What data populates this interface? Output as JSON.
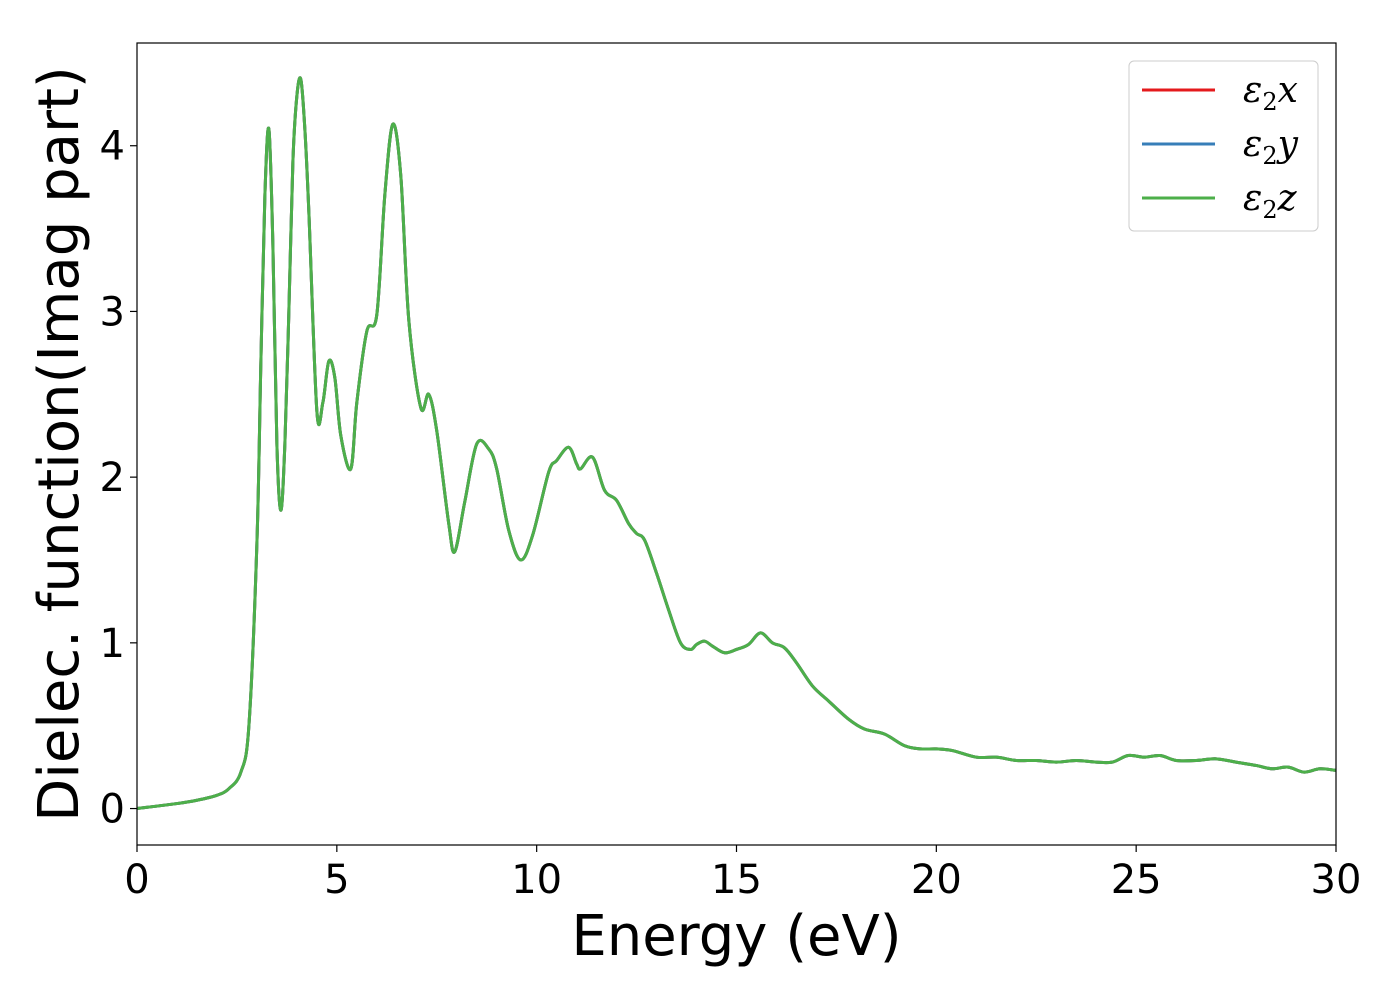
{
  "chart_data": {
    "type": "line",
    "xlabel": "Energy (eV)",
    "ylabel": "Dielec. function(Imag part)",
    "xlim": [
      0,
      30
    ],
    "ylim": [
      -0.22,
      4.62
    ],
    "xticks": [
      0,
      5,
      10,
      15,
      20,
      25,
      30
    ],
    "yticks": [
      0,
      1,
      2,
      3,
      4
    ],
    "grid": false,
    "legend_position": "top-right",
    "x": [
      0,
      1,
      1.5,
      2,
      2.3,
      2.6,
      2.8,
      3.0,
      3.1,
      3.2,
      3.3,
      3.4,
      3.5,
      3.6,
      3.7,
      3.8,
      3.9,
      4.0,
      4.1,
      4.2,
      4.3,
      4.5,
      4.65,
      4.8,
      4.95,
      5.1,
      5.35,
      5.5,
      5.75,
      6.0,
      6.2,
      6.4,
      6.6,
      6.8,
      7.1,
      7.3,
      7.5,
      7.8,
      7.95,
      8.2,
      8.5,
      8.8,
      9.0,
      9.3,
      9.6,
      9.9,
      10.3,
      10.5,
      10.8,
      11.0,
      11.1,
      11.4,
      11.7,
      12.0,
      12.3,
      12.5,
      12.7,
      13.0,
      13.3,
      13.6,
      13.85,
      14.0,
      14.2,
      14.4,
      14.7,
      15.0,
      15.3,
      15.6,
      15.9,
      16.2,
      16.5,
      16.9,
      17.3,
      17.8,
      18.2,
      18.7,
      19.2,
      19.6,
      20.0,
      20.4,
      21.0,
      21.5,
      22.0,
      22.5,
      23.0,
      23.5,
      24.0,
      24.4,
      24.8,
      25.2,
      25.6,
      26.0,
      26.5,
      27.0,
      27.5,
      28.0,
      28.4,
      28.8,
      29.2,
      29.6,
      30.0
    ],
    "series": [
      {
        "name": "ε2x",
        "color": "#e41a1c",
        "values": [
          0.0,
          0.03,
          0.05,
          0.08,
          0.12,
          0.22,
          0.5,
          1.6,
          2.7,
          3.7,
          4.1,
          3.4,
          2.2,
          1.8,
          2.2,
          3.0,
          3.9,
          4.3,
          4.4,
          4.1,
          3.6,
          2.4,
          2.45,
          2.7,
          2.6,
          2.25,
          2.05,
          2.45,
          2.88,
          2.98,
          3.7,
          4.13,
          3.82,
          2.95,
          2.42,
          2.5,
          2.28,
          1.72,
          1.55,
          1.85,
          2.2,
          2.17,
          2.05,
          1.68,
          1.5,
          1.65,
          2.03,
          2.1,
          2.18,
          2.08,
          2.05,
          2.12,
          1.92,
          1.86,
          1.72,
          1.66,
          1.62,
          1.42,
          1.2,
          1.0,
          0.96,
          0.99,
          1.01,
          0.98,
          0.94,
          0.96,
          0.99,
          1.06,
          1.0,
          0.97,
          0.88,
          0.74,
          0.65,
          0.54,
          0.48,
          0.45,
          0.38,
          0.36,
          0.36,
          0.35,
          0.31,
          0.31,
          0.29,
          0.29,
          0.28,
          0.29,
          0.28,
          0.28,
          0.32,
          0.31,
          0.32,
          0.29,
          0.29,
          0.3,
          0.28,
          0.26,
          0.24,
          0.25,
          0.22,
          0.24,
          0.23
        ]
      },
      {
        "name": "ε2y",
        "color": "#377eb8",
        "values": [
          0.0,
          0.03,
          0.05,
          0.08,
          0.12,
          0.22,
          0.5,
          1.6,
          2.7,
          3.7,
          4.1,
          3.4,
          2.2,
          1.8,
          2.2,
          3.0,
          3.9,
          4.3,
          4.4,
          4.1,
          3.6,
          2.4,
          2.45,
          2.7,
          2.6,
          2.25,
          2.05,
          2.45,
          2.88,
          2.98,
          3.7,
          4.13,
          3.82,
          2.95,
          2.42,
          2.5,
          2.28,
          1.72,
          1.55,
          1.85,
          2.2,
          2.17,
          2.05,
          1.68,
          1.5,
          1.65,
          2.03,
          2.1,
          2.18,
          2.08,
          2.05,
          2.12,
          1.92,
          1.86,
          1.72,
          1.66,
          1.62,
          1.42,
          1.2,
          1.0,
          0.96,
          0.99,
          1.01,
          0.98,
          0.94,
          0.96,
          0.99,
          1.06,
          1.0,
          0.97,
          0.88,
          0.74,
          0.65,
          0.54,
          0.48,
          0.45,
          0.38,
          0.36,
          0.36,
          0.35,
          0.31,
          0.31,
          0.29,
          0.29,
          0.28,
          0.29,
          0.28,
          0.28,
          0.32,
          0.31,
          0.32,
          0.29,
          0.29,
          0.3,
          0.28,
          0.26,
          0.24,
          0.25,
          0.22,
          0.24,
          0.23
        ]
      },
      {
        "name": "ε2z",
        "color": "#4daf4a",
        "values": [
          0.0,
          0.03,
          0.05,
          0.08,
          0.12,
          0.22,
          0.5,
          1.6,
          2.7,
          3.7,
          4.1,
          3.4,
          2.2,
          1.8,
          2.2,
          3.0,
          3.9,
          4.3,
          4.4,
          4.1,
          3.6,
          2.4,
          2.45,
          2.7,
          2.6,
          2.25,
          2.05,
          2.45,
          2.88,
          2.98,
          3.7,
          4.13,
          3.82,
          2.95,
          2.42,
          2.5,
          2.28,
          1.72,
          1.55,
          1.85,
          2.2,
          2.17,
          2.05,
          1.68,
          1.5,
          1.65,
          2.03,
          2.1,
          2.18,
          2.08,
          2.05,
          2.12,
          1.92,
          1.86,
          1.72,
          1.66,
          1.62,
          1.42,
          1.2,
          1.0,
          0.96,
          0.99,
          1.01,
          0.98,
          0.94,
          0.96,
          0.99,
          1.06,
          1.0,
          0.97,
          0.88,
          0.74,
          0.65,
          0.54,
          0.48,
          0.45,
          0.38,
          0.36,
          0.36,
          0.35,
          0.31,
          0.31,
          0.29,
          0.29,
          0.28,
          0.29,
          0.28,
          0.28,
          0.32,
          0.31,
          0.32,
          0.29,
          0.29,
          0.3,
          0.28,
          0.26,
          0.24,
          0.25,
          0.22,
          0.24,
          0.23
        ]
      }
    ],
    "legend": [
      {
        "symbol": "ε",
        "sub": "2",
        "var": "x"
      },
      {
        "symbol": "ε",
        "sub": "2",
        "var": "y"
      },
      {
        "symbol": "ε",
        "sub": "2",
        "var": "z"
      }
    ]
  }
}
